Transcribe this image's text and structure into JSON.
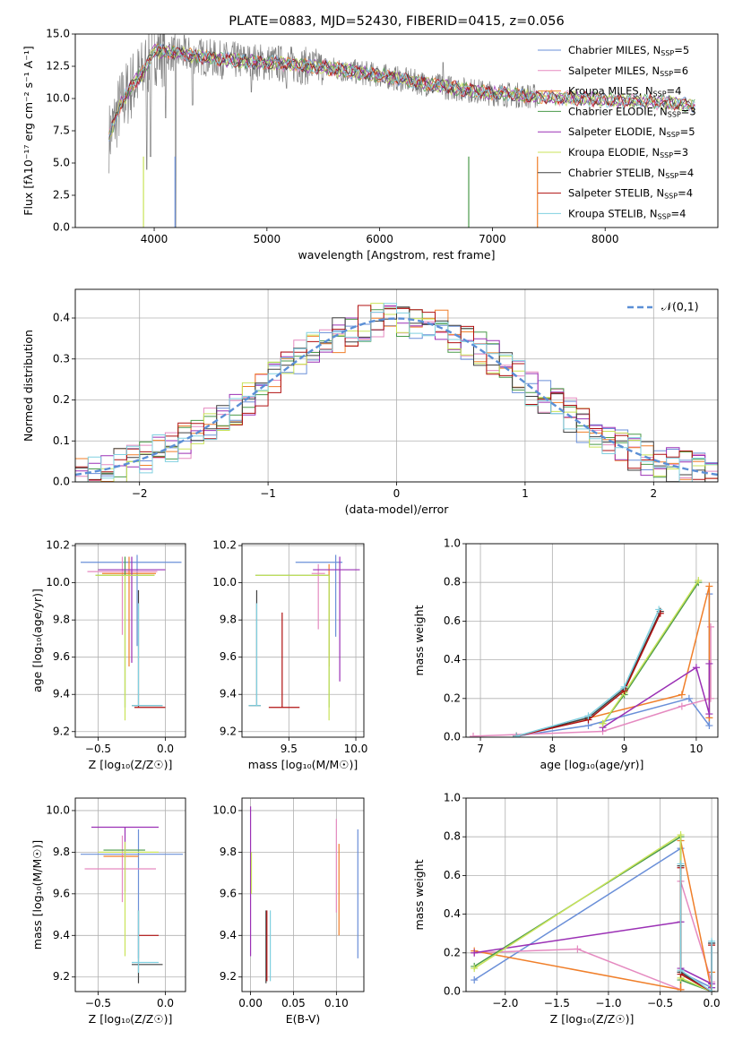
{
  "colors": {
    "Chabrier MILES": "#6a8fd8",
    "Salpeter MILES": "#e58ac0",
    "Kroupa MILES": "#f07f2a",
    "Chabrier ELODIE": "#4a9a4a",
    "Salpeter ELODIE": "#9b30b5",
    "Kroupa ELODIE": "#c9e35a",
    "Chabrier STELIB": "#404040",
    "Salpeter STELIB": "#b01010",
    "Kroupa STELIB": "#80d0e0",
    "data": "#808080",
    "normal": "#5b8fd6"
  },
  "chart_data": [
    {
      "id": "spectrum",
      "type": "line",
      "title": "PLATE=0883, MJD=52430, FIBERID=0415, z=0.056",
      "xlabel": "wavelength [Angstrom, rest frame]",
      "ylabel": "Flux [fλ10⁻¹⁷ erg cm⁻² s⁻¹ A⁻¹]",
      "xlim": [
        3300,
        9000
      ],
      "ylim": [
        0,
        15
      ],
      "xticks": [
        "4000",
        "5000",
        "6000",
        "7000",
        "8000"
      ],
      "yticks": [
        "0.0",
        "2.5",
        "5.0",
        "7.5",
        "10.0",
        "12.5",
        "15.0"
      ],
      "grid": false,
      "legend_position": "top-right",
      "legend": [
        {
          "label": "Chabrier MILES, N",
          "n": "5"
        },
        {
          "label": "Salpeter MILES, N",
          "n": "6"
        },
        {
          "label": "Kroupa MILES, N",
          "n": "4"
        },
        {
          "label": "Chabrier ELODIE, N",
          "n": "3"
        },
        {
          "label": "Salpeter ELODIE, N",
          "n": "5"
        },
        {
          "label": "Kroupa ELODIE, N",
          "n": "3"
        },
        {
          "label": "Chabrier STELIB, N",
          "n": "4"
        },
        {
          "label": "Salpeter STELIB, N",
          "n": "4"
        },
        {
          "label": "Kroupa STELIB, N",
          "n": "4"
        }
      ],
      "legend_sub": "SSP",
      "continuum": [
        [
          3600,
          7.0
        ],
        [
          3700,
          9.5
        ],
        [
          3800,
          11.0
        ],
        [
          3900,
          12.0
        ],
        [
          4000,
          13.8
        ],
        [
          4100,
          13.6
        ],
        [
          4300,
          13.4
        ],
        [
          4600,
          13.0
        ],
        [
          5000,
          12.8
        ],
        [
          5500,
          12.4
        ],
        [
          6000,
          11.8
        ],
        [
          6500,
          11.0
        ],
        [
          7000,
          10.4
        ],
        [
          7500,
          10.1
        ],
        [
          8000,
          9.9
        ],
        [
          8500,
          9.7
        ],
        [
          8800,
          9.5
        ]
      ]
    },
    {
      "id": "histogram",
      "type": "line",
      "xlabel": "(data-model)/error",
      "ylabel": "Normed distribution",
      "xlim": [
        -2.5,
        2.5
      ],
      "ylim": [
        0,
        0.47
      ],
      "xticks": [
        "−2",
        "−1",
        "0",
        "1",
        "2"
      ],
      "yticks": [
        "0.0",
        "0.1",
        "0.2",
        "0.3",
        "0.4"
      ],
      "grid": true,
      "legend": "𝒩(0,1)",
      "legend_position": "top-right",
      "bins": [
        -2.5,
        -2.4,
        -2.3,
        -2.2,
        -2.1,
        -2.0,
        -1.9,
        -1.8,
        -1.7,
        -1.6,
        -1.5,
        -1.4,
        -1.3,
        -1.2,
        -1.1,
        -1.0,
        -0.9,
        -0.8,
        -0.7,
        -0.6,
        -0.5,
        -0.4,
        -0.3,
        -0.2,
        -0.1,
        0.0,
        0.1,
        0.2,
        0.3,
        0.4,
        0.5,
        0.6,
        0.7,
        0.8,
        0.9,
        1.0,
        1.1,
        1.2,
        1.3,
        1.4,
        1.5,
        1.6,
        1.7,
        1.8,
        1.9,
        2.0,
        2.1,
        2.2,
        2.3,
        2.4,
        2.5
      ]
    },
    {
      "id": "age-vs-z",
      "type": "scatter",
      "xlabel": "Z [log₁₀(Z/Z☉)]",
      "ylabel": "age  [log₁₀(age/yr)]",
      "xlim": [
        -0.67,
        0.15
      ],
      "ylim": [
        9.17,
        10.21
      ],
      "xticks": [
        "−0.5",
        "0.0"
      ],
      "yticks": [
        "9.2",
        "9.4",
        "9.6",
        "9.8",
        "10.0",
        "10.2"
      ],
      "grid": true,
      "points": [
        {
          "model": "Chabrier MILES",
          "x": -0.21,
          "xerr": [
            0.42,
            0.33
          ],
          "y": 10.11,
          "yerr": [
            0.45,
            0.04
          ]
        },
        {
          "model": "Salpeter MILES",
          "x": -0.32,
          "xerr": [
            0.26,
            0.26
          ],
          "y": 10.06,
          "yerr": [
            0.34,
            0.08
          ]
        },
        {
          "model": "Kroupa MILES",
          "x": -0.27,
          "xerr": [
            0.2,
            0.2
          ],
          "y": 10.05,
          "yerr": [
            0.5,
            0.09
          ]
        },
        {
          "model": "Chabrier ELODIE",
          "x": -0.3,
          "xerr": [
            0.22,
            0.22
          ],
          "y": 10.04,
          "yerr": [
            0.71,
            0.1
          ]
        },
        {
          "model": "Salpeter ELODIE",
          "x": -0.25,
          "xerr": [
            0.25,
            0.25
          ],
          "y": 10.07,
          "yerr": [
            0.5,
            0.07
          ]
        },
        {
          "model": "Kroupa ELODIE",
          "x": -0.3,
          "xerr": [
            0.22,
            0.22
          ],
          "y": 10.04,
          "yerr": [
            0.78,
            0.0
          ]
        },
        {
          "model": "Chabrier STELIB",
          "x": -0.2,
          "xerr": [
            0.05,
            0.18
          ],
          "y": 9.34,
          "yerr": [
            0.0,
            0.62
          ]
        },
        {
          "model": "Salpeter STELIB",
          "x": -0.2,
          "xerr": [
            0.03,
            0.2
          ],
          "y": 9.33,
          "yerr": [
            0.0,
            0.01
          ]
        },
        {
          "model": "Kroupa STELIB",
          "x": -0.2,
          "xerr": [
            0.05,
            0.18
          ],
          "y": 9.34,
          "yerr": [
            0.0,
            0.55
          ]
        }
      ]
    },
    {
      "id": "age-vs-mass",
      "type": "scatter",
      "xlabel": "mass [log₁₀(M/M☉)]",
      "ylabel": "",
      "xlim": [
        9.15,
        10.06
      ],
      "ylim": [
        9.17,
        10.21
      ],
      "xticks": [
        "9.5",
        "10.0"
      ],
      "yticks": [
        "9.2",
        "9.4",
        "9.6",
        "9.8",
        "10.0",
        "10.2"
      ],
      "grid": true,
      "points": [
        {
          "model": "Chabrier MILES",
          "x": 9.85,
          "xerr": [
            0.3,
            0.05
          ],
          "y": 10.11,
          "yerr": [
            0.4,
            0.04
          ]
        },
        {
          "model": "Salpeter MILES",
          "x": 9.72,
          "xerr": [
            0.05,
            0.05
          ],
          "y": 10.05,
          "yerr": [
            0.3,
            0.05
          ]
        },
        {
          "model": "Kroupa MILES",
          "x": 9.8,
          "xerr": [
            0.0,
            0.0
          ],
          "y": 10.05,
          "yerr": [
            0.5,
            0.05
          ]
        },
        {
          "model": "Chabrier ELODIE",
          "x": 9.8,
          "xerr": [
            0.55,
            0.0
          ],
          "y": 10.04,
          "yerr": [
            0.71,
            0.0
          ]
        },
        {
          "model": "Salpeter ELODIE",
          "x": 9.88,
          "xerr": [
            0.2,
            0.15
          ],
          "y": 10.07,
          "yerr": [
            0.6,
            0.07
          ]
        },
        {
          "model": "Kroupa ELODIE",
          "x": 9.8,
          "xerr": [
            0.55,
            0.0
          ],
          "y": 10.04,
          "yerr": [
            0.78,
            0.0
          ]
        },
        {
          "model": "Chabrier STELIB",
          "x": 9.26,
          "xerr": [
            0.06,
            0.03
          ],
          "y": 9.34,
          "yerr": [
            0.0,
            0.62
          ]
        },
        {
          "model": "Salpeter STELIB",
          "x": 9.45,
          "xerr": [
            0.1,
            0.13
          ],
          "y": 9.33,
          "yerr": [
            0.0,
            0.51
          ]
        },
        {
          "model": "Kroupa STELIB",
          "x": 9.26,
          "xerr": [
            0.06,
            0.03
          ],
          "y": 9.34,
          "yerr": [
            0.0,
            0.55
          ]
        }
      ]
    },
    {
      "id": "weight-vs-age",
      "type": "line",
      "xlabel": "age  [log₁₀(age/yr)]",
      "ylabel": "mass weight",
      "xlim": [
        6.8,
        10.3
      ],
      "ylim": [
        0,
        1.0
      ],
      "xticks": [
        "7",
        "8",
        "9",
        "10"
      ],
      "yticks": [
        "0.0",
        "0.2",
        "0.4",
        "0.6",
        "0.8",
        "1.0"
      ],
      "grid": true,
      "series": [
        {
          "model": "Chabrier MILES",
          "x": [
            7.5,
            8.5,
            9.9,
            10.18,
            10.18
          ],
          "y": [
            0.005,
            0.06,
            0.2,
            0.06,
            0.74
          ]
        },
        {
          "model": "Salpeter MILES",
          "x": [
            6.9,
            8.7,
            9.8,
            10.2,
            10.2
          ],
          "y": [
            0.005,
            0.03,
            0.16,
            0.2,
            0.57
          ]
        },
        {
          "model": "Kroupa MILES",
          "x": [
            7.5,
            9.8,
            10.18,
            10.18
          ],
          "y": [
            0.005,
            0.22,
            0.78,
            0.1
          ]
        },
        {
          "model": "Chabrier ELODIE",
          "x": [
            8.7,
            9.0,
            10.03
          ],
          "y": [
            0.07,
            0.22,
            0.8
          ]
        },
        {
          "model": "Salpeter ELODIE",
          "x": [
            8.7,
            10.0,
            10.18,
            10.18
          ],
          "y": [
            0.05,
            0.36,
            0.12,
            0.38
          ]
        },
        {
          "model": "Kroupa ELODIE",
          "x": [
            8.7,
            9.0,
            10.03
          ],
          "y": [
            0.07,
            0.23,
            0.81
          ]
        },
        {
          "model": "Chabrier STELIB",
          "x": [
            7.5,
            8.5,
            9.0,
            9.5
          ],
          "y": [
            0.005,
            0.1,
            0.25,
            0.65
          ]
        },
        {
          "model": "Salpeter STELIB",
          "x": [
            7.5,
            8.5,
            9.0,
            9.5
          ],
          "y": [
            0.005,
            0.09,
            0.24,
            0.64
          ]
        },
        {
          "model": "Kroupa STELIB",
          "x": [
            7.5,
            8.5,
            9.0,
            9.48
          ],
          "y": [
            0.005,
            0.11,
            0.26,
            0.66
          ]
        }
      ]
    },
    {
      "id": "mass-vs-z",
      "type": "scatter",
      "xlabel": "Z [log₁₀(Z/Z☉)]",
      "ylabel": "mass [log₁₀(M/M☉)]",
      "xlim": [
        -0.67,
        0.15
      ],
      "ylim": [
        9.13,
        10.06
      ],
      "xticks": [
        "−0.5",
        "0.0"
      ],
      "yticks": [
        "9.2",
        "9.4",
        "9.6",
        "9.8",
        "10.0"
      ],
      "grid": true,
      "points": [
        {
          "model": "Chabrier MILES",
          "x": -0.2,
          "xerr": [
            0.43,
            0.33
          ],
          "y": 9.79,
          "yerr": [
            0.5,
            0.12
          ]
        },
        {
          "model": "Salpeter MILES",
          "x": -0.32,
          "xerr": [
            0.28,
            0.25
          ],
          "y": 9.72,
          "yerr": [
            0.16,
            0.16
          ]
        },
        {
          "model": "Kroupa MILES",
          "x": -0.2,
          "xerr": [
            0.26,
            0.0
          ],
          "y": 9.78,
          "yerr": [
            0.0,
            0.0
          ]
        },
        {
          "model": "Chabrier ELODIE",
          "x": -0.2,
          "xerr": [
            0.26,
            0.05
          ],
          "y": 9.81,
          "yerr": [
            0.0,
            0.0
          ]
        },
        {
          "model": "Salpeter ELODIE",
          "x": -0.3,
          "xerr": [
            0.25,
            0.25
          ],
          "y": 9.92,
          "yerr": [
            0.31,
            0.0
          ]
        },
        {
          "model": "Kroupa ELODIE",
          "x": -0.3,
          "xerr": [
            0.2,
            0.25
          ],
          "y": 9.8,
          "yerr": [
            0.5,
            0.05
          ]
        },
        {
          "model": "Chabrier STELIB",
          "x": -0.2,
          "xerr": [
            0.05,
            0.18
          ],
          "y": 9.26,
          "yerr": [
            0.09,
            0.26
          ]
        },
        {
          "model": "Salpeter STELIB",
          "x": -0.2,
          "xerr": [
            0.0,
            0.15
          ],
          "y": 9.4,
          "yerr": [
            0.0,
            0.0
          ]
        },
        {
          "model": "Kroupa STELIB",
          "x": -0.2,
          "xerr": [
            0.05,
            0.15
          ],
          "y": 9.27,
          "yerr": [
            0.05,
            0.25
          ]
        }
      ]
    },
    {
      "id": "mass-vs-ebv",
      "type": "scatter",
      "xlabel": "E(B-V)",
      "ylabel": "",
      "xlim": [
        -0.01,
        0.132
      ],
      "ylim": [
        9.13,
        10.06
      ],
      "xticks": [
        "0.00",
        "0.05",
        "0.10"
      ],
      "yticks": [
        "9.2",
        "9.4",
        "9.6",
        "9.8",
        "10.0"
      ],
      "grid": true,
      "points": [
        {
          "model": "Chabrier MILES",
          "x": 0.125,
          "y": 9.6,
          "yerr": [
            0.31,
            0.31
          ]
        },
        {
          "model": "Salpeter MILES",
          "x": 0.1,
          "y": 9.75,
          "yerr": [
            0.24,
            0.21
          ]
        },
        {
          "model": "Kroupa MILES",
          "x": 0.103,
          "y": 9.62,
          "yerr": [
            0.22,
            0.22
          ]
        },
        {
          "model": "Chabrier ELODIE",
          "x": 0.0,
          "y": 9.7,
          "yerr": [
            0.1,
            0.1
          ]
        },
        {
          "model": "Salpeter ELODIE",
          "x": 0.0,
          "y": 9.65,
          "yerr": [
            0.35,
            0.37
          ]
        },
        {
          "model": "Kroupa ELODIE",
          "x": 0.001,
          "y": 9.7,
          "yerr": [
            0.1,
            0.1
          ]
        },
        {
          "model": "Chabrier STELIB",
          "x": 0.018,
          "y": 9.35,
          "yerr": [
            0.18,
            0.17
          ]
        },
        {
          "model": "Salpeter STELIB",
          "x": 0.019,
          "y": 9.35,
          "yerr": [
            0.17,
            0.17
          ]
        },
        {
          "model": "Kroupa STELIB",
          "x": 0.023,
          "y": 9.35,
          "yerr": [
            0.17,
            0.17
          ]
        }
      ]
    },
    {
      "id": "weight-vs-z",
      "type": "line",
      "xlabel": "Z [log₁₀(Z/Z☉)]",
      "ylabel": "mass weight",
      "xlim": [
        -2.38,
        0.06
      ],
      "ylim": [
        0,
        1.0
      ],
      "xticks": [
        "−2.0",
        "−1.5",
        "−1.0",
        "−0.5",
        "0.0"
      ],
      "yticks": [
        "0.0",
        "0.2",
        "0.4",
        "0.6",
        "0.8",
        "1.0"
      ],
      "grid": true,
      "series": [
        {
          "model": "Chabrier MILES",
          "x": [
            -2.3,
            -0.3,
            -0.3,
            0.0,
            0.0
          ],
          "y": [
            0.06,
            0.74,
            0.1,
            0.02,
            0.25
          ]
        },
        {
          "model": "Salpeter MILES",
          "x": [
            -2.3,
            -1.3,
            -0.3,
            -0.3,
            0.0,
            0.0
          ],
          "y": [
            0.2,
            0.22,
            0.01,
            0.57,
            0.05,
            0.0
          ]
        },
        {
          "model": "Kroupa MILES",
          "x": [
            -2.3,
            -0.3,
            -0.3,
            0.0,
            0.0
          ],
          "y": [
            0.21,
            0.01,
            0.78,
            0.0,
            0.1
          ]
        },
        {
          "model": "Chabrier ELODIE",
          "x": [
            -2.3,
            -0.3,
            -0.3,
            0.0
          ],
          "y": [
            0.13,
            0.8,
            0.06,
            0.0
          ]
        },
        {
          "model": "Salpeter ELODIE",
          "x": [
            -2.3,
            -0.3,
            -0.3,
            0.0,
            0.0
          ],
          "y": [
            0.2,
            0.36,
            0.12,
            0.04,
            0.02
          ]
        },
        {
          "model": "Kroupa ELODIE",
          "x": [
            -2.3,
            -0.3,
            -0.3,
            0.0
          ],
          "y": [
            0.12,
            0.81,
            0.07,
            0.0
          ]
        },
        {
          "model": "Chabrier STELIB",
          "x": [
            -0.3,
            -0.3,
            0.0,
            0.0
          ],
          "y": [
            0.65,
            0.1,
            0.0,
            0.25
          ]
        },
        {
          "model": "Salpeter STELIB",
          "x": [
            -0.3,
            -0.3,
            0.0,
            0.0
          ],
          "y": [
            0.64,
            0.09,
            0.0,
            0.24
          ]
        },
        {
          "model": "Kroupa STELIB",
          "x": [
            -0.3,
            -0.3,
            0.0,
            0.0
          ],
          "y": [
            0.66,
            0.11,
            0.0,
            0.26
          ]
        }
      ]
    }
  ]
}
